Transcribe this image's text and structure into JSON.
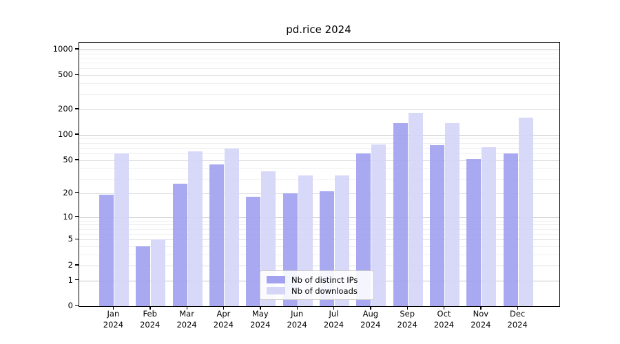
{
  "title": "pd.rice 2024",
  "colors": {
    "ips_bar": "#a2a2f1",
    "downloads_bar": "#d5d5f8",
    "major_grid": "#c3c3c3",
    "mid_grid": "#dddddd",
    "minor_grid": "#efefef",
    "axis": "#000000"
  },
  "legend": {
    "items": [
      {
        "label": "Nb of distinct IPs",
        "color_key": "ips_bar"
      },
      {
        "label": "Nb of downloads",
        "color_key": "downloads_bar"
      }
    ]
  },
  "chart_data": {
    "type": "bar",
    "title": "pd.rice 2024",
    "categories": [
      "Jan 2024",
      "Feb 2024",
      "Mar 2024",
      "Apr 2024",
      "May 2024",
      "Jun 2024",
      "Jul 2024",
      "Aug 2024",
      "Sep 2024",
      "Oct 2024",
      "Nov 2024",
      "Dec 2024"
    ],
    "series": [
      {
        "name": "Nb of distinct IPs",
        "color_key": "ips_bar",
        "values": [
          19,
          4,
          26,
          44,
          18,
          20,
          21,
          60,
          136,
          75,
          52,
          60
        ]
      },
      {
        "name": "Nb of downloads",
        "color_key": "downloads_bar",
        "values": [
          60,
          5,
          64,
          68,
          37,
          33,
          33,
          77,
          180,
          136,
          71,
          160
        ]
      }
    ],
    "xlabel": "",
    "ylabel": "",
    "yscale": "symlog (log(1+v))",
    "y_ticks": [
      0,
      1,
      2,
      5,
      10,
      20,
      50,
      100,
      200,
      500,
      1000
    ],
    "y_minor_ticks": [
      3,
      4,
      6,
      7,
      8,
      9,
      30,
      40,
      60,
      70,
      80,
      90,
      300,
      400,
      600,
      700,
      800,
      900
    ],
    "ylim": [
      0,
      1160
    ],
    "grid": true,
    "legend_position": "lower center"
  }
}
